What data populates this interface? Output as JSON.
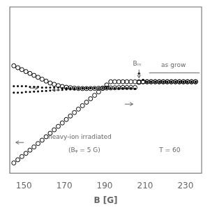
{
  "chart_data": {
    "type": "scatter",
    "xlabel": "B [G]",
    "xlim": [
      143,
      238
    ],
    "ylim": [
      -1.0,
      0.3
    ],
    "xticks": [
      150,
      170,
      190,
      210,
      230
    ],
    "yticks": [],
    "grid": false,
    "tick_labels": "x",
    "series": [
      {
        "color": "#000000",
        "marker": "dot",
        "x": [
          145,
          147,
          149,
          151,
          153,
          155,
          157,
          159,
          161,
          163,
          165,
          167,
          169,
          171,
          173,
          175,
          177,
          179,
          181,
          183,
          185,
          187,
          189,
          191,
          193,
          195,
          197,
          199,
          201,
          203,
          205,
          207,
          209,
          211,
          213,
          215,
          217,
          219,
          221,
          223,
          225,
          227,
          229,
          231,
          233,
          235
        ],
        "values": [
          -0.32,
          -0.32,
          -0.32,
          -0.32,
          -0.325,
          -0.325,
          -0.325,
          -0.33,
          -0.33,
          -0.33,
          -0.33,
          -0.33,
          -0.335,
          -0.335,
          -0.335,
          -0.335,
          -0.335,
          -0.335,
          -0.335,
          -0.335,
          -0.335,
          -0.335,
          -0.335,
          -0.335,
          -0.335,
          -0.335,
          -0.335,
          -0.335,
          -0.335,
          -0.335,
          -0.34,
          -0.22,
          -0.27,
          -0.285,
          -0.285,
          -0.285,
          -0.285,
          -0.285,
          -0.285,
          -0.285,
          -0.285,
          -0.285,
          -0.285,
          -0.285,
          -0.285,
          -0.285
        ]
      },
      {
        "color": "#000000",
        "marker": "dot",
        "x": [
          145,
          147,
          149,
          151,
          153,
          155,
          157,
          159,
          161,
          163,
          165,
          167,
          169,
          171,
          173,
          175,
          177,
          179,
          181,
          183,
          185,
          187,
          189,
          191,
          193,
          195,
          197,
          199,
          201,
          203,
          205,
          207,
          209,
          211,
          213,
          215,
          217,
          219,
          221,
          223,
          225,
          227,
          229,
          231,
          233,
          235
        ],
        "values": [
          -0.37,
          -0.37,
          -0.37,
          -0.365,
          -0.365,
          -0.362,
          -0.36,
          -0.358,
          -0.356,
          -0.354,
          -0.352,
          -0.35,
          -0.348,
          -0.346,
          -0.344,
          -0.342,
          -0.34,
          -0.338,
          -0.337,
          -0.336,
          -0.336,
          -0.336,
          -0.336,
          -0.336,
          -0.336,
          -0.336,
          -0.336,
          -0.336,
          -0.336,
          -0.336,
          -0.34,
          -0.22,
          -0.27,
          -0.285,
          -0.285,
          -0.285,
          -0.285,
          -0.285,
          -0.285,
          -0.285,
          -0.285,
          -0.285,
          -0.285,
          -0.285,
          -0.285,
          -0.285
        ]
      },
      {
        "color": "#000000",
        "marker": "open_circle",
        "x": [
          145,
          147,
          149,
          151,
          153,
          155,
          157,
          159,
          161,
          163,
          165,
          167,
          169,
          171,
          173,
          175,
          177,
          179,
          181,
          183,
          185,
          187,
          189,
          191,
          193,
          195,
          197,
          199,
          201,
          203,
          205,
          207,
          209,
          211,
          213,
          215,
          217,
          219,
          221,
          223,
          225,
          227,
          229,
          231,
          233,
          235
        ],
        "values": [
          -0.16,
          -0.175,
          -0.19,
          -0.205,
          -0.22,
          -0.235,
          -0.25,
          -0.265,
          -0.28,
          -0.295,
          -0.305,
          -0.315,
          -0.322,
          -0.328,
          -0.332,
          -0.335,
          -0.337,
          -0.338,
          -0.338,
          -0.338,
          -0.337,
          -0.336,
          -0.335,
          -0.334,
          -0.333,
          -0.332,
          -0.331,
          -0.33,
          -0.33,
          -0.33,
          -0.33,
          -0.29,
          -0.285,
          -0.285,
          -0.285,
          -0.285,
          -0.285,
          -0.285,
          -0.285,
          -0.285,
          -0.285,
          -0.285,
          -0.285,
          -0.285,
          -0.285,
          -0.285
        ]
      },
      {
        "color": "#000000",
        "marker": "open_circle",
        "x": [
          145,
          147,
          149,
          151,
          153,
          155,
          157,
          159,
          161,
          163,
          165,
          167,
          169,
          171,
          173,
          175,
          177,
          179,
          181,
          183,
          185,
          187,
          189,
          191,
          193,
          195,
          197,
          199,
          201,
          203,
          205,
          207,
          209,
          211,
          213,
          215,
          217,
          219,
          221,
          223,
          225,
          227,
          229,
          231,
          233,
          235
        ],
        "values": [
          -0.92,
          -0.895,
          -0.87,
          -0.845,
          -0.82,
          -0.795,
          -0.768,
          -0.742,
          -0.715,
          -0.688,
          -0.661,
          -0.634,
          -0.607,
          -0.58,
          -0.553,
          -0.526,
          -0.499,
          -0.472,
          -0.445,
          -0.418,
          -0.391,
          -0.364,
          -0.337,
          -0.31,
          -0.285,
          -0.285,
          -0.285,
          -0.285,
          -0.285,
          -0.285,
          -0.285,
          -0.285,
          -0.285,
          -0.285,
          -0.285,
          -0.285,
          -0.285,
          -0.285,
          -0.285,
          -0.285,
          -0.285,
          -0.285,
          -0.285,
          -0.285,
          -0.285,
          -0.285
        ]
      }
    ],
    "annotations": [
      {
        "text": "Bₘ",
        "x": 204,
        "y": -0.17
      },
      {
        "text": "as grow",
        "x": 218,
        "y": -0.18
      },
      {
        "text": "heavy-ion irradiated",
        "x": 162,
        "y": -0.72
      },
      {
        "text": "(Bᵩ = 5 G)",
        "x": 172,
        "y": -0.82
      },
      {
        "text": "T = 60",
        "x": 217,
        "y": -0.82
      }
    ],
    "arrows": [
      {
        "x1": 207,
        "y1": -0.19,
        "x2": 207,
        "y2": -0.255
      },
      {
        "x1": 153,
        "y1": -0.335,
        "x2": 157,
        "y2": -0.335
      },
      {
        "x1": 168,
        "y1": -0.35,
        "x2": 164,
        "y2": -0.35
      },
      {
        "x1": 190,
        "y1": -0.337,
        "x2": 186,
        "y2": -0.337
      },
      {
        "x1": 200,
        "y1": -0.46,
        "x2": 204,
        "y2": -0.46
      },
      {
        "x1": 150,
        "y1": -0.76,
        "x2": 146,
        "y2": -0.76
      }
    ],
    "lines": [
      {
        "x": [
          212,
          237
        ],
        "y": [
          -0.215,
          -0.215
        ]
      }
    ]
  }
}
